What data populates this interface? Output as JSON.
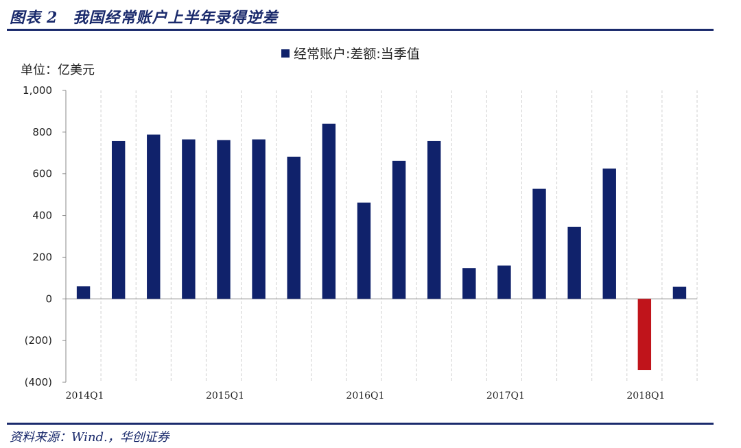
{
  "figure": {
    "label": "图表",
    "number": "2",
    "title": "我国经常账户上半年录得逆差"
  },
  "unit_label": "单位：亿美元",
  "source": "资料来源：Wind.，华创证券",
  "colors": {
    "positive": "#10226b",
    "negative": "#c0141b",
    "title": "#1a2a6c"
  },
  "chart_data": {
    "type": "bar",
    "series": [
      {
        "name": "经常账户:差额:当季值",
        "categories": [
          "2014Q1",
          "2014Q2",
          "2014Q3",
          "2014Q4",
          "2015Q1",
          "2015Q2",
          "2015Q3",
          "2015Q4",
          "2016Q1",
          "2016Q2",
          "2016Q3",
          "2016Q4",
          "2017Q1",
          "2017Q2",
          "2017Q3",
          "2017Q4",
          "2018Q1",
          "2018Q2"
        ],
        "values": [
          60,
          757,
          788,
          765,
          762,
          765,
          682,
          840,
          462,
          662,
          757,
          148,
          160,
          528,
          346,
          625,
          -341,
          58
        ]
      }
    ],
    "x_tick_labels": [
      "2014Q1",
      "2015Q1",
      "2016Q1",
      "2017Q1",
      "2018Q1"
    ],
    "x_tick_every": 4,
    "y_ticks": [
      "1,000",
      "800",
      "600",
      "400",
      "200",
      "0",
      "(200)",
      "(400)"
    ],
    "ylim": [
      -400,
      1000
    ],
    "grid": "vertical dashed",
    "legend_position": "top-center"
  }
}
